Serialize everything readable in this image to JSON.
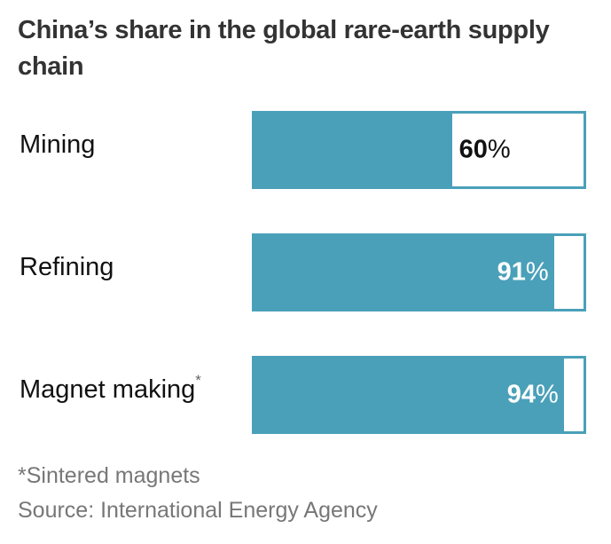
{
  "chart_data": {
    "type": "bar",
    "title": "China’s share in the global rare-earth supply chain",
    "categories": [
      "Mining",
      "Refining",
      "Magnet making"
    ],
    "category_marks": [
      "",
      "",
      "*"
    ],
    "values": [
      60,
      91,
      94
    ],
    "value_labels": [
      "60",
      "91",
      "94"
    ],
    "unit": "%",
    "xlim": [
      0,
      100
    ],
    "fill_color": "#4aa0b9",
    "footnote": "*Sintered magnets",
    "source": "Source: International Energy Agency"
  }
}
